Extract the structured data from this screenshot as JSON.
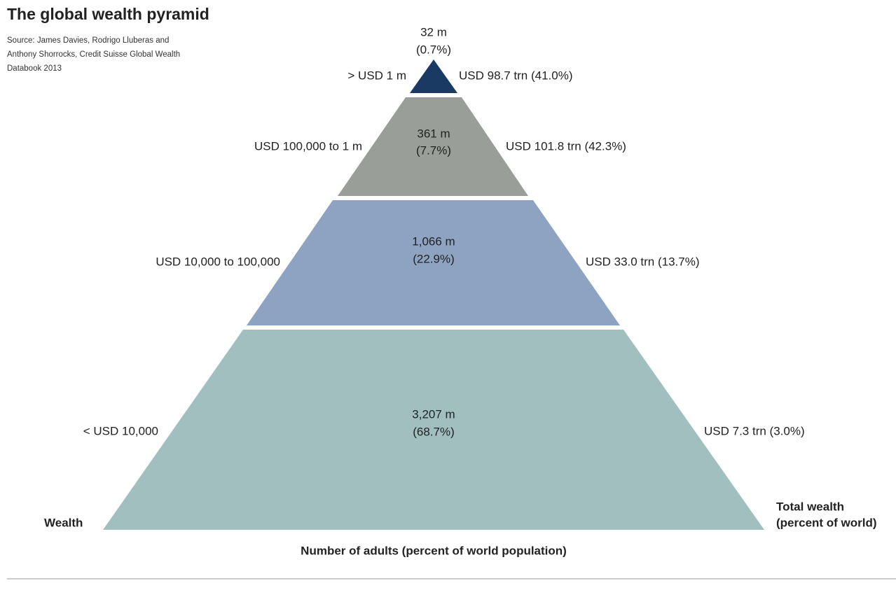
{
  "header": {
    "title": "The global wealth pyramid",
    "source": [
      "Source: James Davies, Rodrigo Lluberas and",
      "Anthony Shorrocks, Credit Suisse Global Wealth",
      "Databook 2013"
    ]
  },
  "tiers": [
    {
      "wealth": "> USD 1 m",
      "adults": "32 m",
      "adults_share": "(0.7%)",
      "total_wealth": "USD 98.7 trn (41.0%)"
    },
    {
      "wealth": "USD 100,000 to 1 m",
      "adults": "361 m",
      "adults_share": "(7.7%)",
      "total_wealth": "USD 101.8 trn (42.3%)"
    },
    {
      "wealth": "USD 10,000 to 100,000",
      "adults": "1,066 m",
      "adults_share": "(22.9%)",
      "total_wealth": "USD 33.0 trn (13.7%)"
    },
    {
      "wealth": "< USD 10,000",
      "adults": "3,207 m",
      "adults_share": "(68.7%)",
      "total_wealth": "USD 7.3 trn (3.0%)"
    }
  ],
  "axis_labels": {
    "left": "Wealth",
    "right": [
      "Total wealth",
      "(percent of world)"
    ],
    "bottom": "Number of adults (percent of world population)"
  }
}
